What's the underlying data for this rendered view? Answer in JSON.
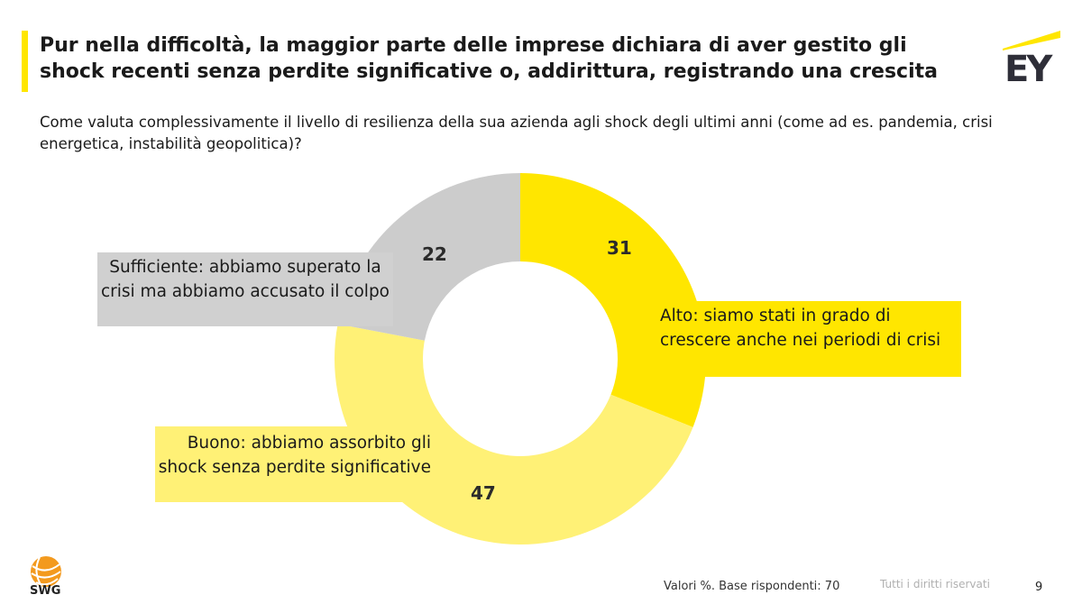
{
  "header": {
    "title": "Pur nella difficoltà, la maggior parte delle imprese dichiara di aver gestito gli shock recenti senza perdite significative o, addirittura, registrando una crescita",
    "question": "Come valuta complessivamente il livello di resilienza della sua azienda agli shock degli ultimi anni (come ad es. pandemia, crisi energetica, instabilità geopolitica)?"
  },
  "logos": {
    "ey": "EY",
    "swg": "SWG"
  },
  "chart_data": {
    "type": "pie",
    "variant": "donut",
    "categories": [
      "Alto: siamo stati in grado di crescere anche nei periodi di crisi",
      "Buono: abbiamo assorbito gli shock senza perdite significative",
      "Sufficiente: abbiamo superato la crisi ma abbiamo accusato il colpo"
    ],
    "values": [
      31,
      47,
      22
    ],
    "value_labels": [
      "31",
      "47",
      "22"
    ],
    "colors": [
      "#ffe600",
      "#fff176",
      "#cccccc"
    ],
    "start": "top, clockwise"
  },
  "footer": {
    "base": "Valori %. Base rispondenti: 70",
    "rights": "Tutti i diritti riservati",
    "page": "9"
  }
}
